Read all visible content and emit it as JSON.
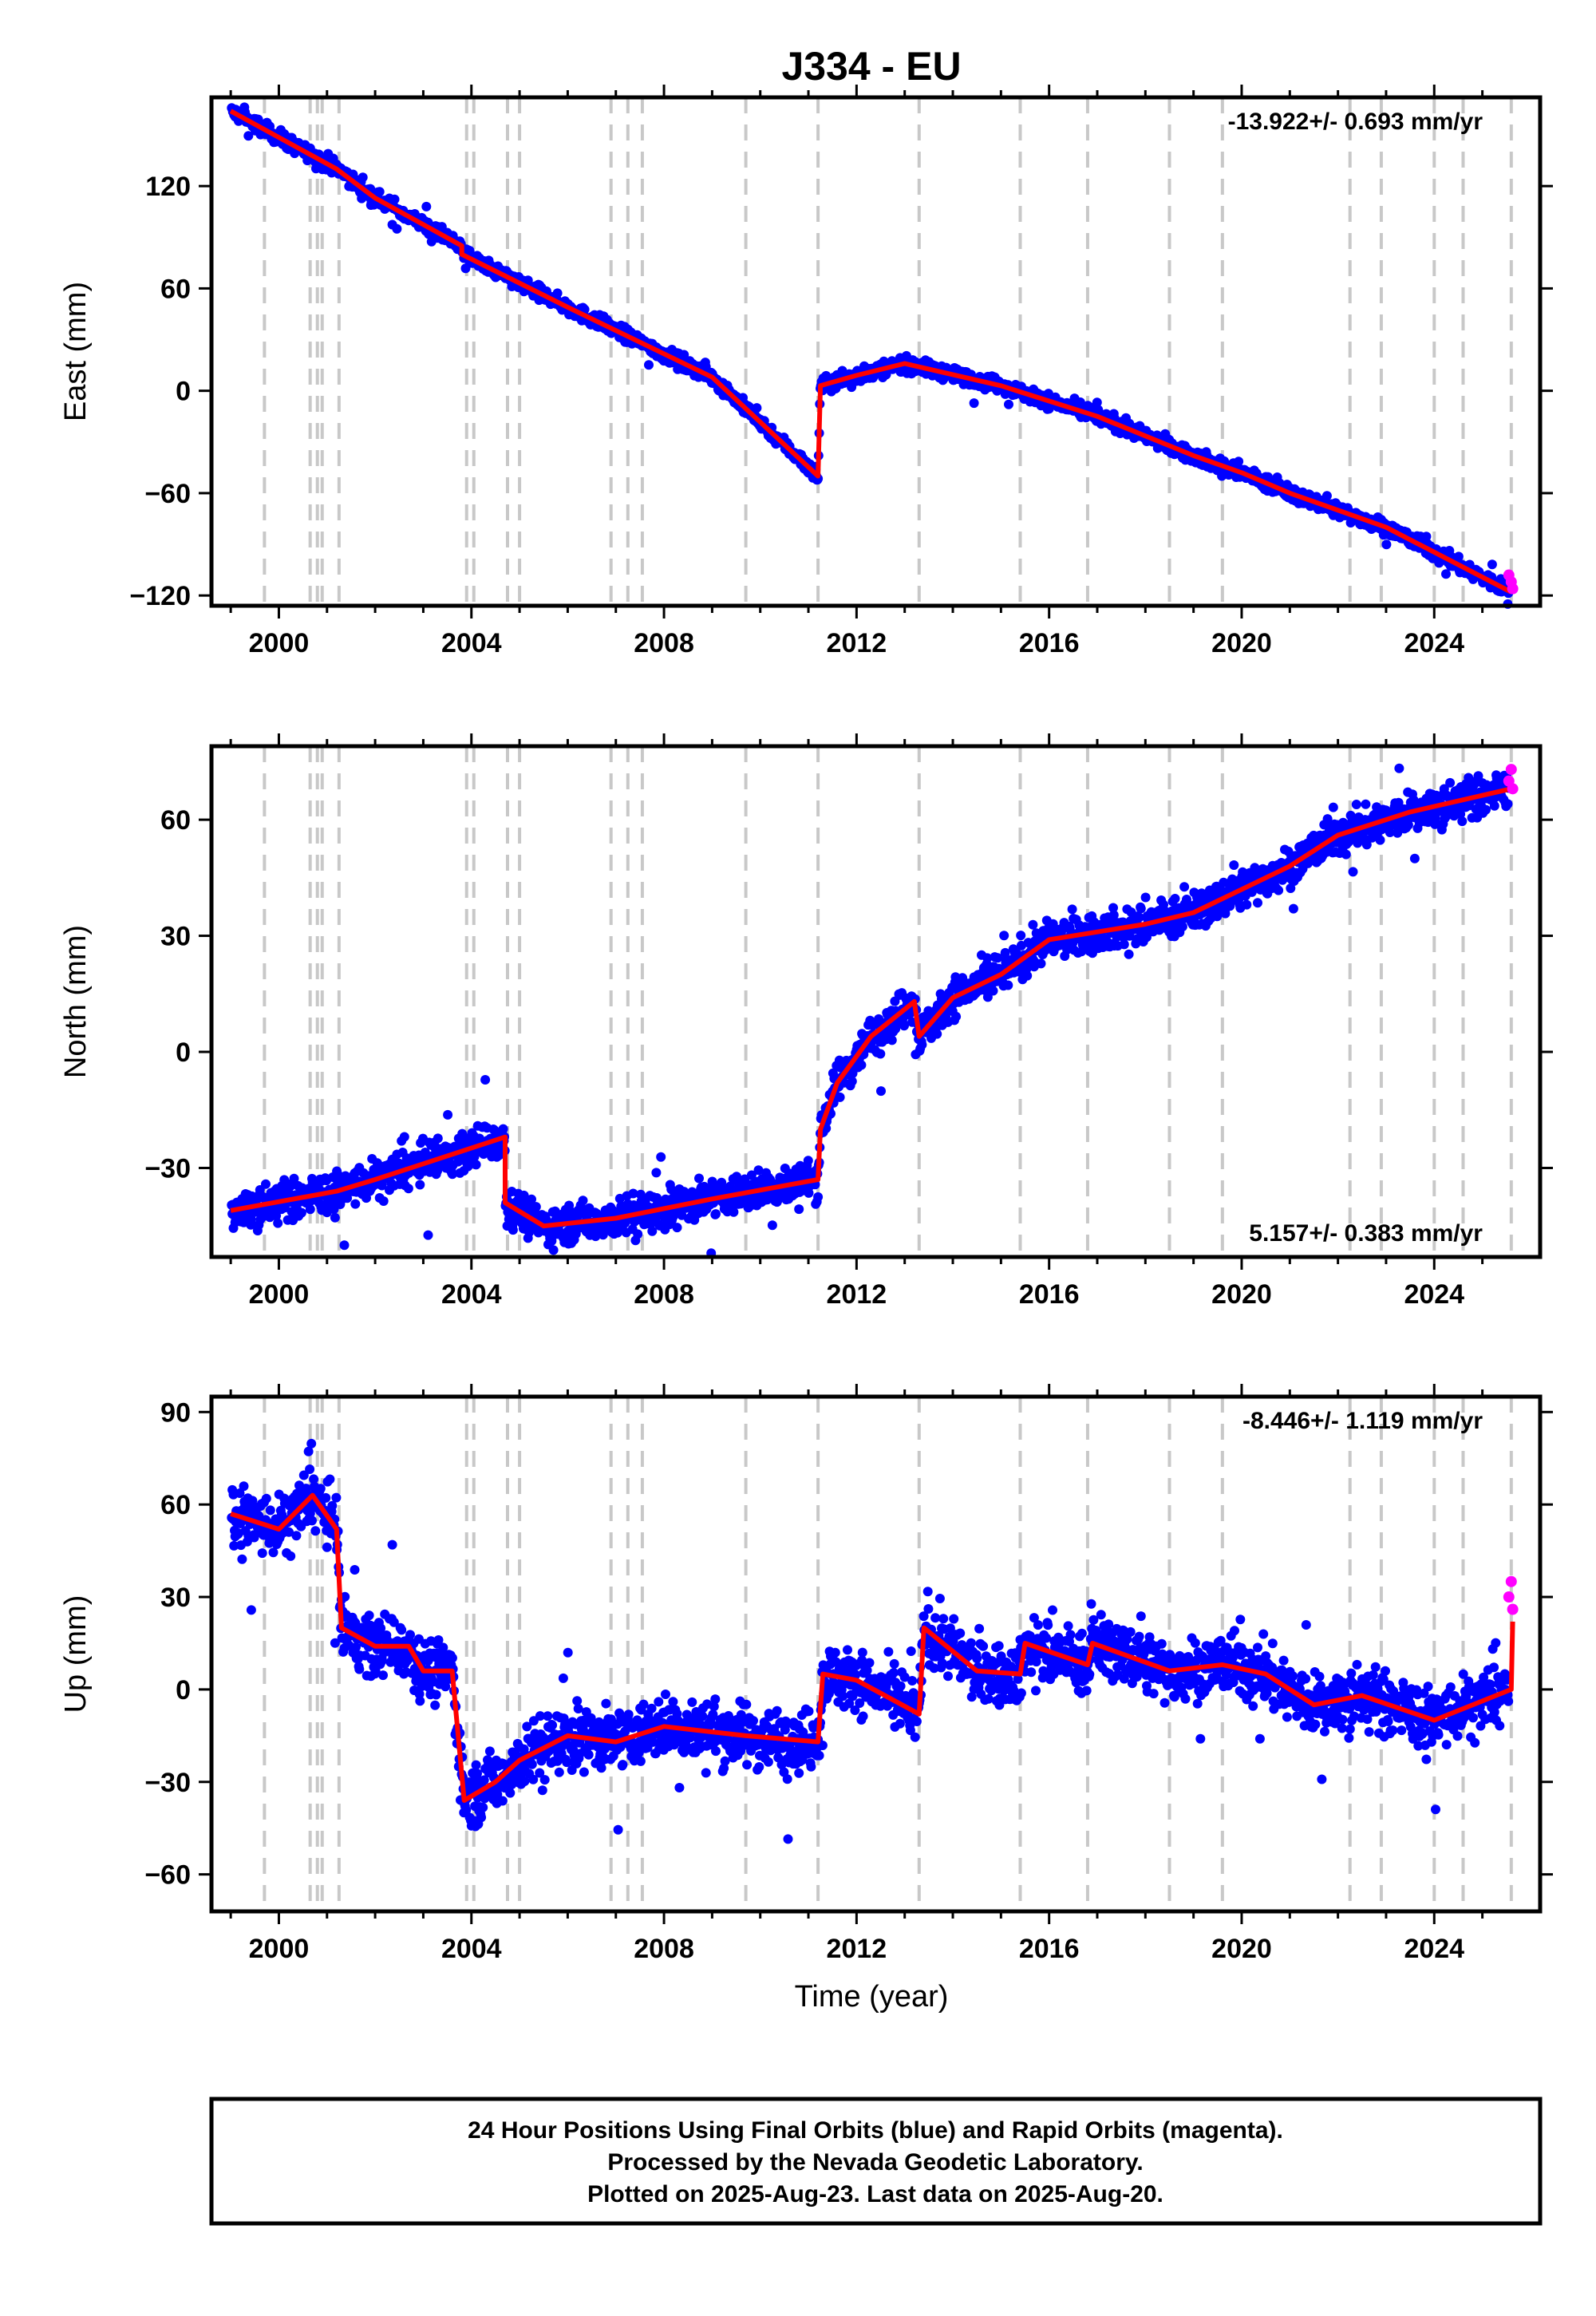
{
  "figure": {
    "title": "J334 - EU",
    "x_label": "Time (year)",
    "footer": [
      "24 Hour Positions Using Final Orbits (blue) and Rapid Orbits (magenta).",
      "Processed by the Nevada Geodetic Laboratory.",
      "Plotted on 2025-Aug-23. Last data on 2025-Aug-20."
    ],
    "colors": {
      "final": "#0000ff",
      "rapid": "#ff00ff",
      "model": "#ff0000",
      "event_lines": "#c8c8c8"
    }
  },
  "chart_data": [
    {
      "type": "scatter",
      "ylabel": "East (mm)",
      "rate_text": "-13.922+/- 0.693 mm/yr",
      "x_ticks": [
        2000,
        2004,
        2008,
        2012,
        2016,
        2020,
        2024
      ],
      "y_ticks": [
        120,
        60,
        0,
        -60,
        -120
      ],
      "xlim": [
        1998.6,
        2026.2
      ],
      "ylim": [
        -126,
        172
      ],
      "event_lines": [
        1999.7,
        2000.65,
        2000.8,
        2000.9,
        2001.25,
        2003.9,
        2004.05,
        2004.75,
        2005.0,
        2006.9,
        2007.25,
        2007.55,
        2009.7,
        2011.2,
        2013.3,
        2015.4,
        2016.8,
        2018.5,
        2019.6,
        2022.25,
        2022.9,
        2024.0,
        2024.6,
        2025.6
      ],
      "model": [
        [
          1999.0,
          164
        ],
        [
          2001.2,
          130
        ],
        [
          2002.0,
          113
        ],
        [
          2003.8,
          85
        ],
        [
          2003.8,
          80
        ],
        [
          2006.0,
          49
        ],
        [
          2009.0,
          8
        ],
        [
          2011.2,
          -50
        ],
        [
          2011.25,
          3
        ],
        [
          2012.0,
          9
        ],
        [
          2013.0,
          16
        ],
        [
          2015.0,
          3
        ],
        [
          2017.0,
          -15
        ],
        [
          2019.0,
          -38
        ],
        [
          2020.0,
          -48
        ],
        [
          2021.0,
          -60
        ],
        [
          2023.0,
          -80
        ],
        [
          2025.6,
          -118
        ]
      ],
      "rapid": [
        [
          2025.55,
          -108
        ],
        [
          2025.6,
          -112
        ],
        [
          2025.63,
          -116
        ]
      ]
    },
    {
      "type": "scatter",
      "ylabel": "North (mm)",
      "rate_text": "5.157+/- 0.383 mm/yr",
      "x_ticks": [
        2000,
        2004,
        2008,
        2012,
        2016,
        2020,
        2024
      ],
      "y_ticks": [
        60,
        30,
        0,
        -30
      ],
      "xlim": [
        1998.6,
        2026.2
      ],
      "ylim": [
        -53,
        79
      ],
      "event_lines": [
        1999.7,
        2000.65,
        2000.8,
        2000.9,
        2001.25,
        2003.9,
        2004.05,
        2004.75,
        2005.0,
        2006.9,
        2007.25,
        2007.55,
        2009.7,
        2011.2,
        2013.3,
        2015.4,
        2016.8,
        2018.5,
        2019.6,
        2022.25,
        2022.9,
        2024.0,
        2024.6,
        2025.6
      ],
      "model": [
        [
          1999.0,
          -41
        ],
        [
          2001.2,
          -36
        ],
        [
          2002.0,
          -33
        ],
        [
          2004.7,
          -22
        ],
        [
          2004.7,
          -39
        ],
        [
          2005.5,
          -45
        ],
        [
          2007.0,
          -43
        ],
        [
          2009.0,
          -38
        ],
        [
          2011.2,
          -33
        ],
        [
          2011.25,
          -20
        ],
        [
          2011.6,
          -8
        ],
        [
          2012.3,
          4
        ],
        [
          2013.2,
          13
        ],
        [
          2013.3,
          4
        ],
        [
          2014.0,
          14
        ],
        [
          2015.0,
          20
        ],
        [
          2016.0,
          29
        ],
        [
          2018.0,
          33
        ],
        [
          2019.0,
          36
        ],
        [
          2020.0,
          42
        ],
        [
          2021.0,
          48
        ],
        [
          2022.0,
          56
        ],
        [
          2023.5,
          62
        ],
        [
          2025.6,
          68
        ]
      ],
      "rapid": [
        [
          2025.55,
          70
        ],
        [
          2025.6,
          73
        ],
        [
          2025.63,
          68
        ]
      ]
    },
    {
      "type": "scatter",
      "ylabel": "Up (mm)",
      "rate_text": "-8.446+/- 1.119 mm/yr",
      "x_ticks": [
        2000,
        2004,
        2008,
        2012,
        2016,
        2020,
        2024
      ],
      "y_ticks": [
        90,
        60,
        30,
        0,
        -30,
        -60
      ],
      "xlim": [
        1998.6,
        2026.2
      ],
      "ylim": [
        -72,
        95
      ],
      "event_lines": [
        1999.7,
        2000.65,
        2000.8,
        2000.9,
        2001.25,
        2003.9,
        2004.05,
        2004.75,
        2005.0,
        2006.9,
        2007.25,
        2007.55,
        2009.7,
        2011.2,
        2013.3,
        2015.4,
        2016.8,
        2018.5,
        2019.6,
        2022.25,
        2022.9,
        2024.0,
        2024.6,
        2025.6
      ],
      "model": [
        [
          1999.0,
          57
        ],
        [
          2000.0,
          52
        ],
        [
          2000.7,
          63
        ],
        [
          2001.2,
          52
        ],
        [
          2001.3,
          20
        ],
        [
          2002.0,
          14
        ],
        [
          2002.7,
          14
        ],
        [
          2003.0,
          6
        ],
        [
          2003.6,
          6
        ],
        [
          2003.85,
          -36
        ],
        [
          2004.5,
          -30
        ],
        [
          2005.0,
          -23
        ],
        [
          2006.0,
          -15
        ],
        [
          2007.0,
          -17
        ],
        [
          2008.0,
          -12
        ],
        [
          2009.7,
          -15
        ],
        [
          2011.2,
          -17
        ],
        [
          2011.3,
          5
        ],
        [
          2012.0,
          3
        ],
        [
          2013.3,
          -8
        ],
        [
          2013.4,
          20
        ],
        [
          2014.5,
          6
        ],
        [
          2015.4,
          5
        ],
        [
          2015.5,
          15
        ],
        [
          2016.8,
          8
        ],
        [
          2016.9,
          15
        ],
        [
          2018.5,
          6
        ],
        [
          2019.6,
          8
        ],
        [
          2020.5,
          5
        ],
        [
          2021.5,
          -5
        ],
        [
          2022.5,
          -2
        ],
        [
          2024.0,
          -10
        ],
        [
          2025.6,
          0
        ],
        [
          2025.63,
          22
        ]
      ],
      "rapid": [
        [
          2025.55,
          30
        ],
        [
          2025.6,
          35
        ],
        [
          2025.63,
          26
        ]
      ]
    }
  ]
}
